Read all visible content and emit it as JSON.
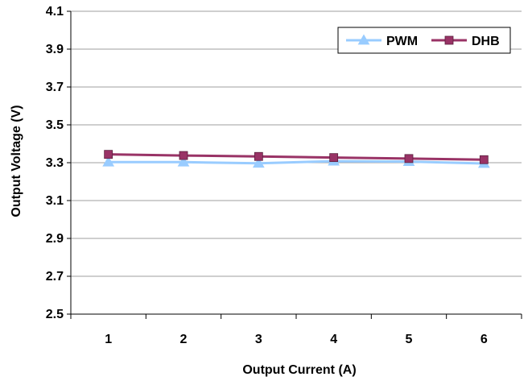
{
  "chart_data": {
    "type": "line",
    "title": "",
    "xlabel": "Output Current (A)",
    "ylabel": "Output Voltage (V)",
    "categories": [
      "1",
      "2",
      "3",
      "4",
      "5",
      "6"
    ],
    "ylim": [
      2.5,
      4.1
    ],
    "yticks": [
      "2.5",
      "2.7",
      "2.9",
      "3.1",
      "3.3",
      "3.5",
      "3.7",
      "3.9",
      "4.1"
    ],
    "grid": true,
    "legend_position": "top-right",
    "series": [
      {
        "name": "PWM",
        "color": "#99CCFF",
        "marker": "triangle",
        "values": [
          3.303,
          3.303,
          3.297,
          3.308,
          3.306,
          3.296
        ]
      },
      {
        "name": "DHB",
        "color": "#993366",
        "marker": "square",
        "values": [
          3.344,
          3.338,
          3.333,
          3.327,
          3.322,
          3.316
        ]
      }
    ]
  }
}
